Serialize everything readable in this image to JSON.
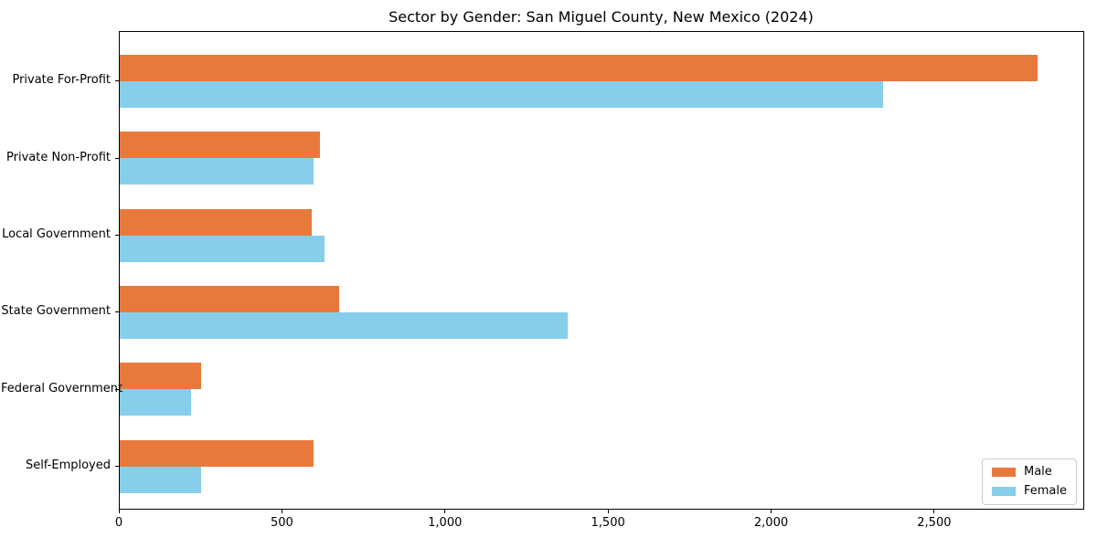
{
  "title": "Sector by Gender: San Miguel County, New Mexico (2024)",
  "colors": {
    "male": "#e8793c",
    "female": "#87ceeb",
    "axis": "#000000",
    "background": "#ffffff",
    "legend_border": "#cccccc"
  },
  "legend": {
    "position": "lower right",
    "items": [
      {
        "label": "Male",
        "color": "#e8793c"
      },
      {
        "label": "Female",
        "color": "#87ceeb"
      }
    ]
  },
  "chart_data": {
    "type": "bar",
    "orientation": "horizontal",
    "title": "Sector by Gender: San Miguel County, New Mexico (2024)",
    "xlabel": "",
    "ylabel": "",
    "categories": [
      "Private For-Profit",
      "Private Non-Profit",
      "Local Government",
      "State Government",
      "Federal Government",
      "Self-Employed"
    ],
    "series": [
      {
        "name": "Male",
        "color": "#e8793c",
        "values": [
          2820,
          615,
          590,
          675,
          250,
          595
        ]
      },
      {
        "name": "Female",
        "color": "#87ceeb",
        "values": [
          2345,
          595,
          630,
          1375,
          220,
          250
        ]
      }
    ],
    "xlim": [
      0,
      2960
    ],
    "xticks": [
      0,
      500,
      1000,
      1500,
      2000,
      2500
    ],
    "xtick_labels": [
      "0",
      "500",
      "1,000",
      "1,500",
      "2,000",
      "2,500"
    ],
    "grid": false,
    "legend_position": "lower right"
  }
}
